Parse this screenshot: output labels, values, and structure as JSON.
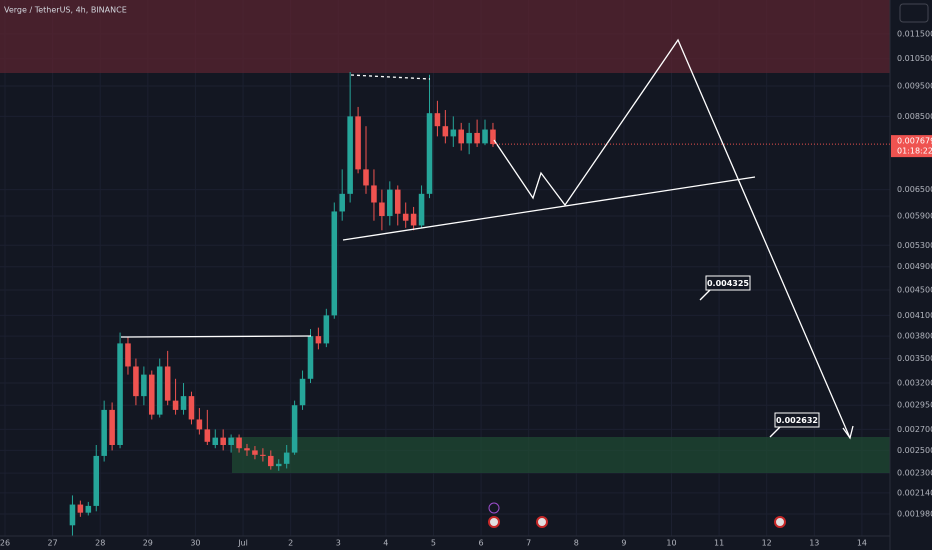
{
  "chart_data": {
    "type": "candlestick",
    "title": "Verge / TetherUS, 4h, BINANCE",
    "log_scale": true,
    "grid": true,
    "up_color": "#26a69a",
    "down_color": "#ef5350",
    "ylim": [
      0.001827,
      0.01302
    ],
    "yticks": [
      {
        "value": 0.0115,
        "label": "0.011500"
      },
      {
        "value": 0.0105,
        "label": "0.010500"
      },
      {
        "value": 0.0095,
        "label": "0.009500"
      },
      {
        "value": 0.0085,
        "label": "0.008500"
      },
      {
        "value": 0.0065,
        "label": "0.006500"
      },
      {
        "value": 0.0059,
        "label": "0.005900"
      },
      {
        "value": 0.0053,
        "label": "0.005300"
      },
      {
        "value": 0.0049,
        "label": "0.004900"
      },
      {
        "value": 0.0045,
        "label": "0.004500"
      },
      {
        "value": 0.0041,
        "label": "0.004100"
      },
      {
        "value": 0.0038,
        "label": "0.003800"
      },
      {
        "value": 0.0035,
        "label": "0.003500"
      },
      {
        "value": 0.0032,
        "label": "0.003200"
      },
      {
        "value": 0.00295,
        "label": "0.002950"
      },
      {
        "value": 0.0027,
        "label": "0.002700"
      },
      {
        "value": 0.0025,
        "label": "0.002500"
      },
      {
        "value": 0.0023,
        "label": "0.002300"
      },
      {
        "value": 0.00214,
        "label": "0.002140"
      },
      {
        "value": 0.00198,
        "label": "0.001980"
      }
    ],
    "xlim": [
      -0.105,
      18.59
    ],
    "xticks": [
      {
        "value": 0,
        "label": "26"
      },
      {
        "value": 1,
        "label": "27"
      },
      {
        "value": 2,
        "label": "28"
      },
      {
        "value": 3,
        "label": "29"
      },
      {
        "value": 4,
        "label": "30"
      },
      {
        "value": 5,
        "label": "Jul"
      },
      {
        "value": 6,
        "label": "2"
      },
      {
        "value": 7,
        "label": "3"
      },
      {
        "value": 8,
        "label": "4"
      },
      {
        "value": 9,
        "label": "5"
      },
      {
        "value": 10,
        "label": "6"
      },
      {
        "value": 11,
        "label": "7"
      },
      {
        "value": 12,
        "label": "8"
      },
      {
        "value": 13,
        "label": "9"
      },
      {
        "value": 14,
        "label": "10"
      },
      {
        "value": 15,
        "label": "11"
      },
      {
        "value": 16,
        "label": "12"
      },
      {
        "value": 17,
        "label": "13"
      },
      {
        "value": 18,
        "label": "14"
      }
    ],
    "x": [
      1.417,
      1.583,
      1.75,
      1.917,
      2.083,
      2.25,
      2.417,
      2.583,
      2.75,
      2.917,
      3.083,
      3.25,
      3.417,
      3.583,
      3.75,
      3.917,
      4.083,
      4.25,
      4.417,
      4.583,
      4.75,
      4.917,
      5.083,
      5.25,
      5.417,
      5.583,
      5.75,
      5.917,
      6.083,
      6.25,
      6.417,
      6.583,
      6.75,
      6.917,
      7.083,
      7.25,
      7.417,
      7.583,
      7.75,
      7.917,
      8.083,
      8.25,
      8.417,
      8.583,
      8.75,
      8.917,
      9.083,
      9.25,
      9.417,
      9.583,
      9.75,
      9.917,
      10.083,
      10.25
    ],
    "open": [
      0.0019,
      0.00205,
      0.00199,
      0.00204,
      0.00245,
      0.0029,
      0.00255,
      0.0037,
      0.0034,
      0.00305,
      0.0033,
      0.00285,
      0.0034,
      0.003,
      0.0029,
      0.00305,
      0.0028,
      0.0027,
      0.00255,
      0.00262,
      0.00255,
      0.00262,
      0.00252,
      0.0025,
      0.00246,
      0.00245,
      0.00236,
      0.00238,
      0.00248,
      0.00295,
      0.00325,
      0.0038,
      0.0037,
      0.0041,
      0.006,
      0.0064,
      0.0085,
      0.007,
      0.0066,
      0.0062,
      0.0059,
      0.0065,
      0.00595,
      0.00595,
      0.0057,
      0.0064,
      0.0086,
      0.0082,
      0.0079,
      0.0081,
      0.0077,
      0.008,
      0.0077,
      0.0081
    ],
    "high": [
      0.00212,
      0.00208,
      0.00207,
      0.00255,
      0.003,
      0.00298,
      0.00385,
      0.00378,
      0.0035,
      0.0034,
      0.00335,
      0.0035,
      0.0036,
      0.00325,
      0.0032,
      0.0031,
      0.00292,
      0.0029,
      0.0027,
      0.0027,
      0.00265,
      0.00265,
      0.00256,
      0.00254,
      0.00252,
      0.0025,
      0.00242,
      0.00255,
      0.003,
      0.00335,
      0.0039,
      0.00392,
      0.0042,
      0.0062,
      0.007,
      0.01,
      0.0088,
      0.0082,
      0.007,
      0.0065,
      0.0067,
      0.0066,
      0.0062,
      0.0061,
      0.0066,
      0.0099,
      0.009,
      0.0087,
      0.0085,
      0.0083,
      0.0083,
      0.0084,
      0.0084,
      0.0083
    ],
    "low": [
      0.00183,
      0.00196,
      0.00197,
      0.002,
      0.0024,
      0.0025,
      0.00252,
      0.0033,
      0.00295,
      0.00295,
      0.0028,
      0.00282,
      0.00295,
      0.00285,
      0.00285,
      0.00275,
      0.00265,
      0.00255,
      0.00252,
      0.0025,
      0.00248,
      0.00248,
      0.00245,
      0.00242,
      0.0024,
      0.00233,
      0.00232,
      0.00234,
      0.00246,
      0.0029,
      0.0032,
      0.00362,
      0.00365,
      0.00405,
      0.0058,
      0.0062,
      0.0069,
      0.0064,
      0.0058,
      0.0056,
      0.0057,
      0.0057,
      0.00565,
      0.0056,
      0.00565,
      0.0063,
      0.0079,
      0.0077,
      0.0076,
      0.0075,
      0.0074,
      0.0076,
      0.00765,
      0.0076
    ],
    "close": [
      0.00205,
      0.00199,
      0.00204,
      0.00245,
      0.0029,
      0.00255,
      0.0037,
      0.0034,
      0.00305,
      0.0033,
      0.00285,
      0.0034,
      0.003,
      0.0029,
      0.00305,
      0.0028,
      0.0027,
      0.00258,
      0.00262,
      0.00255,
      0.00262,
      0.00252,
      0.0025,
      0.00246,
      0.00245,
      0.00236,
      0.00238,
      0.00248,
      0.00295,
      0.00325,
      0.0038,
      0.0037,
      0.0041,
      0.006,
      0.0064,
      0.0085,
      0.007,
      0.0066,
      0.0062,
      0.0059,
      0.0065,
      0.00595,
      0.0058,
      0.0057,
      0.0064,
      0.0086,
      0.0082,
      0.0079,
      0.0081,
      0.0077,
      0.008,
      0.0077,
      0.0081,
      0.007679
    ],
    "last_price_label": "0.007679",
    "countdown": "01:18:22",
    "annotations": [
      "0.004325",
      "0.002632"
    ]
  }
}
